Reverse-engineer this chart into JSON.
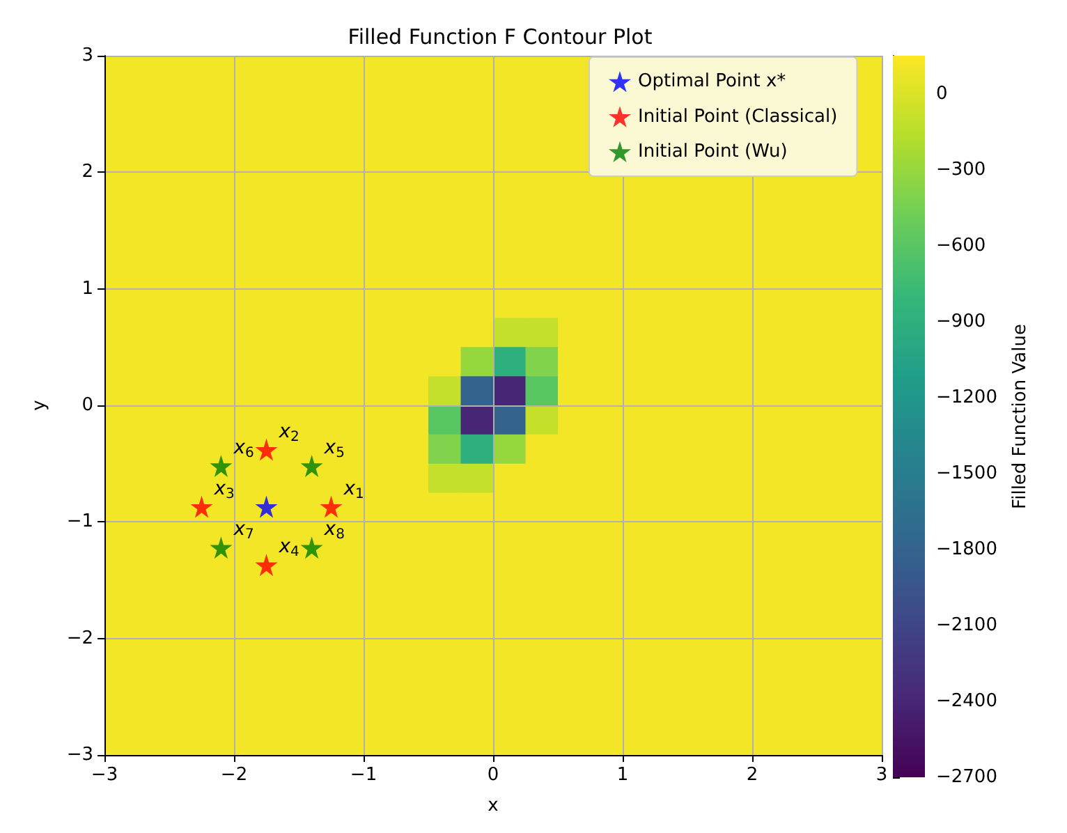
{
  "chart_data": {
    "type": "heatmap",
    "title": "Filled Function F Contour Plot",
    "xlabel": "x",
    "ylabel": "y",
    "clabel": "Filled Function Value",
    "xlim": [
      -3,
      3
    ],
    "ylim": [
      -3,
      3
    ],
    "xticks": [
      {
        "value": -3,
        "label": "−3"
      },
      {
        "value": -2,
        "label": "−2"
      },
      {
        "value": -1,
        "label": "−1"
      },
      0,
      1,
      2,
      3
    ],
    "yticks": [
      {
        "value": -3,
        "label": "−3"
      },
      {
        "value": -2,
        "label": "−2"
      },
      {
        "value": -1,
        "label": "−1"
      },
      0,
      1,
      2,
      3
    ],
    "clim": [
      -2700,
      150
    ],
    "cticks": [
      {
        "value": -2700,
        "label": "−2700"
      },
      {
        "value": -2400,
        "label": "−2400"
      },
      {
        "value": -2100,
        "label": "−2100"
      },
      {
        "value": -1800,
        "label": "−1800"
      },
      {
        "value": -1500,
        "label": "−1500"
      },
      {
        "value": -1200,
        "label": "−1200"
      },
      {
        "value": -900,
        "label": "−900"
      },
      {
        "value": -600,
        "label": "−600"
      },
      {
        "value": -300,
        "label": "−300"
      },
      0
    ],
    "cells": [
      [
        100,
        100,
        100,
        100,
        100,
        100,
        100,
        100,
        100,
        100,
        100,
        100,
        100,
        100,
        100,
        null,
        null,
        null,
        null,
        null,
        null,
        null,
        null,
        100
      ],
      [
        100,
        100,
        100,
        100,
        100,
        100,
        100,
        100,
        100,
        100,
        100,
        100,
        100,
        100,
        100,
        null,
        null,
        null,
        null,
        null,
        null,
        null,
        null,
        100
      ],
      [
        100,
        100,
        100,
        100,
        100,
        100,
        100,
        100,
        100,
        100,
        100,
        100,
        100,
        100,
        100,
        null,
        null,
        null,
        null,
        null,
        null,
        null,
        null,
        100
      ],
      [
        100,
        100,
        100,
        100,
        100,
        100,
        100,
        100,
        100,
        100,
        100,
        100,
        100,
        100,
        100,
        null,
        null,
        null,
        null,
        null,
        null,
        null,
        null,
        100
      ],
      [
        100,
        100,
        100,
        100,
        100,
        100,
        100,
        100,
        100,
        100,
        100,
        100,
        100,
        100,
        100,
        100,
        100,
        100,
        100,
        100,
        100,
        100,
        100,
        100
      ],
      [
        100,
        100,
        100,
        100,
        100,
        100,
        100,
        100,
        100,
        100,
        100,
        100,
        100,
        100,
        100,
        100,
        100,
        100,
        100,
        100,
        100,
        100,
        100,
        100
      ],
      [
        100,
        100,
        100,
        100,
        100,
        100,
        100,
        100,
        100,
        100,
        100,
        100,
        100,
        100,
        100,
        100,
        100,
        100,
        100,
        100,
        100,
        100,
        100,
        100
      ],
      [
        100,
        100,
        100,
        100,
        100,
        100,
        100,
        100,
        100,
        100,
        100,
        100,
        100,
        100,
        100,
        100,
        100,
        100,
        100,
        100,
        100,
        100,
        100,
        100
      ],
      [
        100,
        100,
        100,
        100,
        100,
        100,
        100,
        100,
        100,
        100,
        100,
        100,
        100,
        100,
        100,
        100,
        100,
        100,
        100,
        100,
        100,
        100,
        100,
        100
      ],
      [
        100,
        100,
        100,
        100,
        100,
        100,
        100,
        100,
        100,
        100,
        100,
        100,
        -100,
        -100,
        100,
        100,
        100,
        100,
        100,
        100,
        100,
        100,
        100,
        100
      ],
      [
        100,
        100,
        100,
        100,
        100,
        100,
        100,
        100,
        100,
        100,
        100,
        -300,
        -900,
        -400,
        100,
        100,
        100,
        100,
        100,
        100,
        100,
        100,
        100,
        100
      ],
      [
        100,
        100,
        100,
        100,
        100,
        100,
        100,
        100,
        100,
        100,
        -100,
        -1800,
        -2400,
        -600,
        100,
        100,
        100,
        100,
        100,
        100,
        100,
        100,
        100,
        100
      ],
      [
        100,
        100,
        100,
        100,
        100,
        100,
        100,
        100,
        100,
        100,
        -600,
        -2400,
        -1800,
        -100,
        100,
        100,
        100,
        100,
        100,
        100,
        100,
        100,
        100,
        100
      ],
      [
        100,
        100,
        100,
        100,
        100,
        100,
        100,
        100,
        100,
        100,
        -400,
        -900,
        -300,
        100,
        100,
        100,
        100,
        100,
        100,
        100,
        100,
        100,
        100,
        100
      ],
      [
        100,
        100,
        100,
        100,
        100,
        100,
        100,
        100,
        100,
        100,
        -100,
        -100,
        100,
        100,
        100,
        100,
        100,
        100,
        100,
        100,
        100,
        100,
        100,
        100
      ],
      [
        100,
        100,
        100,
        100,
        100,
        100,
        100,
        100,
        100,
        100,
        100,
        100,
        100,
        100,
        100,
        100,
        100,
        100,
        100,
        100,
        100,
        100,
        100,
        100
      ],
      [
        100,
        100,
        100,
        100,
        100,
        100,
        100,
        100,
        100,
        100,
        100,
        100,
        100,
        100,
        100,
        100,
        100,
        100,
        100,
        100,
        100,
        100,
        100,
        100
      ],
      [
        100,
        100,
        100,
        100,
        100,
        100,
        100,
        100,
        100,
        100,
        100,
        100,
        100,
        100,
        100,
        100,
        100,
        100,
        100,
        100,
        100,
        100,
        100,
        100
      ],
      [
        100,
        100,
        100,
        100,
        100,
        100,
        100,
        100,
        100,
        100,
        100,
        100,
        100,
        100,
        100,
        100,
        100,
        100,
        100,
        100,
        100,
        100,
        100,
        100
      ],
      [
        100,
        100,
        100,
        100,
        100,
        100,
        100,
        100,
        100,
        100,
        100,
        100,
        100,
        100,
        100,
        100,
        100,
        100,
        100,
        100,
        100,
        100,
        100,
        100
      ],
      [
        100,
        100,
        100,
        100,
        100,
        100,
        100,
        100,
        100,
        100,
        100,
        100,
        100,
        100,
        100,
        100,
        100,
        100,
        100,
        100,
        100,
        100,
        100,
        100
      ],
      [
        100,
        100,
        100,
        100,
        100,
        100,
        100,
        100,
        100,
        100,
        100,
        100,
        100,
        100,
        100,
        100,
        100,
        100,
        100,
        100,
        100,
        100,
        100,
        100
      ],
      [
        100,
        100,
        100,
        100,
        100,
        100,
        100,
        100,
        100,
        100,
        100,
        100,
        100,
        100,
        100,
        100,
        100,
        100,
        100,
        100,
        100,
        100,
        100,
        100
      ],
      [
        100,
        100,
        100,
        100,
        100,
        100,
        100,
        100,
        100,
        100,
        100,
        100,
        100,
        100,
        100,
        100,
        100,
        100,
        100,
        100,
        100,
        100,
        100,
        100
      ]
    ],
    "series": [
      {
        "type": "scatter",
        "name": "Optimal Point x*",
        "color": "#0000ff",
        "x": [
          -1.75
        ],
        "values": [
          -0.87
        ]
      },
      {
        "type": "scatter",
        "name": "Initial Point (Classical)",
        "color": "#ff0000",
        "x": [
          -1.25,
          -1.75,
          -2.25,
          -1.75
        ],
        "values": [
          -0.87,
          -0.38,
          -0.87,
          -1.37
        ]
      },
      {
        "type": "scatter",
        "name": "Initial Point (Wu)",
        "color": "#008000",
        "x": [
          -1.4,
          -2.1,
          -2.1,
          -1.4
        ],
        "values": [
          -0.52,
          -0.52,
          -1.22,
          -1.22
        ]
      }
    ],
    "annotations": [
      {
        "text": "x$_{1}$",
        "x": -1.25,
        "y": -0.87
      },
      {
        "text": "x$_{2}$",
        "x": -1.75,
        "y": -0.38
      },
      {
        "text": "x$_{3}$",
        "x": -2.25,
        "y": -0.87
      },
      {
        "text": "x$_{4}$",
        "x": -1.75,
        "y": -1.37
      },
      {
        "text": "x$_{5}$",
        "x": -1.4,
        "y": -0.52
      },
      {
        "text": "x$_{6}$",
        "x": -2.1,
        "y": -0.52
      },
      {
        "text": "x$_{7}$",
        "x": -2.1,
        "y": -1.22
      },
      {
        "text": "x$_{8}$",
        "x": -1.4,
        "y": -1.22
      }
    ],
    "marker": "star",
    "legend": "top right",
    "grid": true
  }
}
